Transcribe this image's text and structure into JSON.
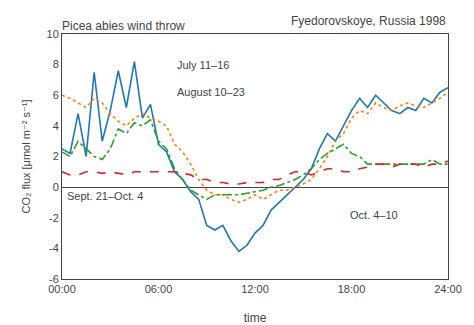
{
  "chart_data": {
    "type": "line",
    "title": "Picea abies wind throw",
    "subtitle": "Fyedorovskoye, Russia 1998",
    "x_label": "time",
    "y_label": "CO₂ flux [μmol m⁻² s⁻¹]",
    "x": [
      0,
      0.5,
      1,
      1.5,
      2,
      2.5,
      3,
      3.5,
      4,
      4.5,
      5,
      5.5,
      6,
      6.5,
      7,
      7.5,
      8,
      8.5,
      9,
      9.5,
      10,
      10.5,
      11,
      11.5,
      12,
      12.5,
      13,
      13.5,
      14,
      14.5,
      15,
      15.5,
      16,
      16.5,
      17,
      17.5,
      18,
      18.5,
      19,
      19.5,
      20,
      20.5,
      21,
      21.5,
      22,
      22.5,
      23,
      23.5,
      24
    ],
    "series": [
      {
        "name": "July 11–16",
        "line_style": "solid",
        "values": [
          2.5,
          2.2,
          4.8,
          2.0,
          7.5,
          3.0,
          5.0,
          7.6,
          5.2,
          8.2,
          4.5,
          5.4,
          2.8,
          2.3,
          1.0,
          0.5,
          -0.3,
          -0.8,
          -2.5,
          -2.8,
          -2.5,
          -3.5,
          -4.2,
          -3.8,
          -3.0,
          -2.5,
          -1.5,
          -1.0,
          -0.5,
          0.0,
          0.5,
          1.2,
          2.5,
          3.5,
          3.0,
          4.0,
          5.0,
          5.8,
          5.2,
          6.0,
          5.5,
          5.0,
          4.8,
          5.2,
          5.0,
          5.8,
          5.5,
          6.2,
          6.5
        ]
      },
      {
        "name": "August 10–23",
        "line_style": "dot",
        "values": [
          6.0,
          5.8,
          5.5,
          5.2,
          5.8,
          5.5,
          4.8,
          4.3,
          4.0,
          4.5,
          4.8,
          4.5,
          4.3,
          4.0,
          2.8,
          2.3,
          1.5,
          0.5,
          -0.2,
          -0.5,
          -0.5,
          -0.8,
          -1.0,
          -0.8,
          -0.5,
          -0.8,
          -0.5,
          -0.2,
          -0.2,
          0.0,
          0.2,
          0.5,
          1.2,
          2.0,
          3.0,
          3.5,
          4.5,
          5.0,
          4.8,
          5.5,
          5.2,
          5.0,
          5.3,
          5.5,
          5.3,
          5.2,
          5.5,
          5.8,
          6.2
        ]
      },
      {
        "name": "Sept. 21–Oct. 4",
        "line_style": "dashdot",
        "values": [
          2.3,
          2.0,
          3.0,
          2.5,
          2.0,
          1.8,
          2.5,
          3.8,
          3.5,
          4.2,
          4.0,
          4.4,
          3.0,
          2.5,
          1.2,
          0.5,
          -0.2,
          -0.5,
          -0.8,
          -0.5,
          -0.5,
          -0.5,
          -0.5,
          -0.4,
          -0.3,
          -0.2,
          0.0,
          0.1,
          0.3,
          0.5,
          0.8,
          1.2,
          1.8,
          2.2,
          2.5,
          2.8,
          2.2,
          2.0,
          1.5,
          1.5,
          1.5,
          1.5,
          1.5,
          1.5,
          1.5,
          1.5,
          1.8,
          1.5,
          1.5
        ]
      },
      {
        "name": "Oct. 4–10",
        "line_style": "dash",
        "values": [
          1.0,
          0.8,
          0.8,
          1.0,
          1.0,
          0.9,
          1.0,
          0.9,
          0.8,
          1.0,
          1.0,
          1.0,
          1.0,
          1.0,
          1.0,
          0.9,
          0.8,
          0.5,
          0.5,
          0.3,
          0.3,
          0.2,
          0.2,
          0.3,
          0.3,
          0.3,
          0.5,
          0.5,
          0.8,
          1.0,
          1.0,
          0.8,
          1.0,
          1.2,
          1.2,
          1.0,
          1.0,
          1.2,
          1.3,
          1.5,
          1.5,
          1.3,
          1.5,
          1.5,
          1.5,
          1.3,
          1.5,
          1.5,
          1.7
        ]
      }
    ],
    "xlim": [
      0,
      24
    ],
    "xticks": [
      {
        "value": 0,
        "label": "00:00"
      },
      {
        "value": 6,
        "label": "06:00"
      },
      {
        "value": 12,
        "label": "12:00"
      },
      {
        "value": 18,
        "label": "18:00"
      },
      {
        "value": 24,
        "label": "24:00"
      }
    ],
    "ylim": [
      -6,
      10
    ],
    "yticks": [
      -6,
      -4,
      -2,
      0,
      2,
      4,
      6,
      8,
      10
    ],
    "grid": false,
    "annotations": [
      {
        "text": "July 11–16",
        "x": 7.0,
        "y": 8.0
      },
      {
        "text": "August 10–23",
        "x": 7.0,
        "y": 6.2
      },
      {
        "text": "Sept. 21–Oct. 4",
        "x": 0.2,
        "y": -0.6
      },
      {
        "text": "Oct. 4–10",
        "x": 17.8,
        "y": -1.8
      }
    ]
  }
}
